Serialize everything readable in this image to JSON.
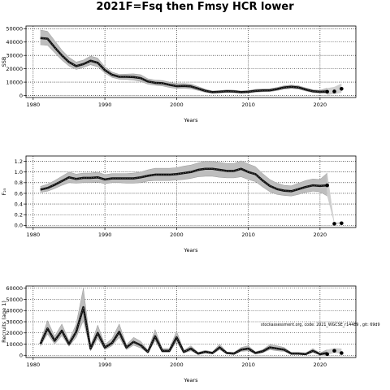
{
  "figure": {
    "title": "2021F=Fsq then Fmsy HCR lower"
  },
  "chart_data": [
    {
      "type": "line",
      "ylabel": "SSB",
      "xlabel": "Years",
      "xlim": [
        1979,
        2025
      ],
      "ylim": [
        -1500,
        52000
      ],
      "xticks": [
        1980,
        1990,
        2000,
        2010,
        2020
      ],
      "yticks": [
        0,
        10000,
        20000,
        30000,
        40000,
        50000
      ],
      "ytick_labels": [
        "0",
        "10000",
        "20000",
        "30000",
        "40000",
        "50000"
      ],
      "grid": true,
      "x": [
        1981,
        1982,
        1983,
        1984,
        1985,
        1986,
        1987,
        1988,
        1989,
        1990,
        1991,
        1992,
        1993,
        1994,
        1995,
        1996,
        1997,
        1998,
        1999,
        2000,
        2001,
        2002,
        2003,
        2004,
        2005,
        2006,
        2007,
        2008,
        2009,
        2010,
        2011,
        2012,
        2013,
        2014,
        2015,
        2016,
        2017,
        2018,
        2019,
        2020,
        2021
      ],
      "y": [
        43000,
        42500,
        36000,
        30000,
        25000,
        22000,
        23500,
        26000,
        24500,
        19000,
        15500,
        14000,
        14000,
        13800,
        13000,
        10500,
        9500,
        9200,
        8000,
        7000,
        7200,
        6800,
        5200,
        3500,
        2500,
        2800,
        3200,
        3000,
        2500,
        2800,
        3500,
        3800,
        3900,
        4800,
        6000,
        6500,
        6000,
        4500,
        3200,
        2800,
        3000
      ],
      "lower": [
        38000,
        37500,
        32000,
        26500,
        22000,
        19500,
        21000,
        23000,
        21500,
        16800,
        13500,
        12200,
        12000,
        11500,
        10500,
        8500,
        7700,
        7200,
        6000,
        5200,
        5400,
        5000,
        3800,
        2400,
        1700,
        1900,
        2300,
        2100,
        1700,
        1900,
        2500,
        2800,
        2900,
        3700,
        4800,
        5300,
        4800,
        3400,
        2200,
        1800,
        1500
      ],
      "upper": [
        49000,
        48000,
        41000,
        34000,
        28500,
        25000,
        26500,
        29500,
        28000,
        21500,
        17500,
        15800,
        16000,
        16200,
        15500,
        12500,
        11500,
        11200,
        10000,
        8900,
        9000,
        8600,
        6700,
        4700,
        3400,
        3700,
        4200,
        4000,
        3400,
        3700,
        4600,
        4900,
        5000,
        6000,
        7300,
        7800,
        7300,
        5700,
        4300,
        3900,
        5500
      ],
      "proj_x": [
        2021,
        2022,
        2023
      ],
      "proj_y": [
        2800,
        3000,
        5000
      ],
      "proj_lower": [
        500,
        1000,
        2000
      ],
      "proj_upper": [
        5500,
        6500,
        9000
      ]
    },
    {
      "type": "line",
      "ylabel": "F₂₅",
      "xlabel": "Years",
      "xlim": [
        1979,
        2025
      ],
      "ylim": [
        -0.04,
        1.3
      ],
      "xticks": [
        1980,
        1990,
        2000,
        2010,
        2020
      ],
      "yticks": [
        0.0,
        0.2,
        0.4,
        0.6,
        0.8,
        1.0,
        1.2
      ],
      "ytick_labels": [
        "0.0",
        "0.2",
        "0.4",
        "0.6",
        "0.8",
        "1.0",
        "1.2"
      ],
      "grid": true,
      "x": [
        1981,
        1982,
        1983,
        1984,
        1985,
        1986,
        1987,
        1988,
        1989,
        1990,
        1991,
        1992,
        1993,
        1994,
        1995,
        1996,
        1997,
        1998,
        1999,
        2000,
        2001,
        2002,
        2003,
        2004,
        2005,
        2006,
        2007,
        2008,
        2009,
        2010,
        2011,
        2012,
        2013,
        2014,
        2015,
        2016,
        2017,
        2018,
        2019,
        2020,
        2021
      ],
      "y": [
        0.67,
        0.7,
        0.76,
        0.83,
        0.9,
        0.87,
        0.89,
        0.89,
        0.9,
        0.86,
        0.88,
        0.88,
        0.88,
        0.88,
        0.9,
        0.93,
        0.95,
        0.95,
        0.95,
        0.96,
        0.98,
        1.0,
        1.04,
        1.06,
        1.06,
        1.04,
        1.02,
        1.02,
        1.06,
        1.0,
        0.96,
        0.84,
        0.74,
        0.68,
        0.65,
        0.64,
        0.68,
        0.72,
        0.75,
        0.74,
        0.75
      ],
      "lower": [
        0.62,
        0.64,
        0.69,
        0.75,
        0.8,
        0.79,
        0.8,
        0.8,
        0.81,
        0.78,
        0.8,
        0.8,
        0.79,
        0.79,
        0.8,
        0.83,
        0.84,
        0.84,
        0.84,
        0.85,
        0.86,
        0.88,
        0.91,
        0.92,
        0.92,
        0.9,
        0.89,
        0.89,
        0.91,
        0.86,
        0.82,
        0.72,
        0.63,
        0.58,
        0.56,
        0.55,
        0.58,
        0.62,
        0.64,
        0.63,
        0.55
      ],
      "upper": [
        0.73,
        0.77,
        0.84,
        0.92,
        1.0,
        0.96,
        0.98,
        0.98,
        1.0,
        0.95,
        0.97,
        0.97,
        0.97,
        0.98,
        1.0,
        1.04,
        1.07,
        1.07,
        1.07,
        1.08,
        1.11,
        1.13,
        1.17,
        1.2,
        1.2,
        1.18,
        1.16,
        1.16,
        1.21,
        1.15,
        1.1,
        0.97,
        0.86,
        0.79,
        0.75,
        0.74,
        0.79,
        0.84,
        0.87,
        0.86,
        0.98
      ],
      "proj_x": [
        2021,
        2022,
        2023
      ],
      "proj_y": [
        0.75,
        0.03,
        0.04
      ],
      "proj_lower": [
        0.55,
        0.02,
        0.03
      ],
      "proj_upper": [
        1.0,
        0.05,
        0.06
      ]
    },
    {
      "type": "line",
      "ylabel": "Recruits (age 1)",
      "xlabel": "Years",
      "xlim": [
        1979,
        2025
      ],
      "ylim": [
        -2000,
        62000
      ],
      "xticks": [
        1980,
        1990,
        2000,
        2010,
        2020
      ],
      "yticks": [
        0,
        10000,
        20000,
        30000,
        40000,
        50000,
        60000
      ],
      "ytick_labels": [
        "0",
        "10000",
        "20000",
        "30000",
        "40000",
        "50000",
        "60000"
      ],
      "grid": true,
      "annotation": "stockassessment.org, code: 2021_WGCSE_r14489 , git: 69d9",
      "x": [
        1981,
        1982,
        1983,
        1984,
        1985,
        1986,
        1987,
        1988,
        1989,
        1990,
        1991,
        1992,
        1993,
        1994,
        1995,
        1996,
        1997,
        1998,
        1999,
        2000,
        2001,
        2002,
        2003,
        2004,
        2005,
        2006,
        2007,
        2008,
        2009,
        2010,
        2011,
        2012,
        2013,
        2014,
        2015,
        2016,
        2017,
        2018,
        2019,
        2020,
        2021
      ],
      "y": [
        10000,
        24000,
        13000,
        22000,
        10000,
        21000,
        43000,
        6000,
        20000,
        7000,
        11000,
        21000,
        7000,
        12000,
        9000,
        3000,
        17000,
        4000,
        4000,
        16000,
        3000,
        6000,
        1500,
        3000,
        2000,
        7000,
        2000,
        1500,
        5000,
        6000,
        2000,
        3500,
        7000,
        6000,
        5000,
        1500,
        1500,
        1000,
        4000,
        1000,
        2000
      ],
      "lower": [
        8000,
        19000,
        10000,
        17500,
        8000,
        16000,
        31000,
        4000,
        15000,
        5000,
        8500,
        16000,
        5000,
        9000,
        6500,
        2000,
        13000,
        2500,
        2500,
        12000,
        2000,
        4000,
        800,
        2000,
        1200,
        5000,
        1200,
        800,
        3500,
        4000,
        1200,
        2300,
        5000,
        4000,
        3500,
        800,
        800,
        500,
        2500,
        500,
        700
      ],
      "upper": [
        12500,
        31000,
        17000,
        28000,
        13000,
        28000,
        60000,
        8500,
        27000,
        9500,
        15000,
        28000,
        9500,
        16000,
        12500,
        4500,
        23000,
        6000,
        6000,
        21500,
        4500,
        8500,
        2500,
        4500,
        3000,
        10000,
        3000,
        2500,
        7000,
        8500,
        3000,
        5000,
        9500,
        8500,
        7000,
        2500,
        2500,
        2000,
        6000,
        2000,
        5000
      ],
      "proj_x": [
        2021,
        2022,
        2023
      ],
      "proj_y": [
        1000,
        4000,
        2000
      ],
      "proj_lower": [
        500,
        2000,
        1500
      ],
      "proj_upper": [
        5000,
        6500,
        6000
      ]
    }
  ]
}
